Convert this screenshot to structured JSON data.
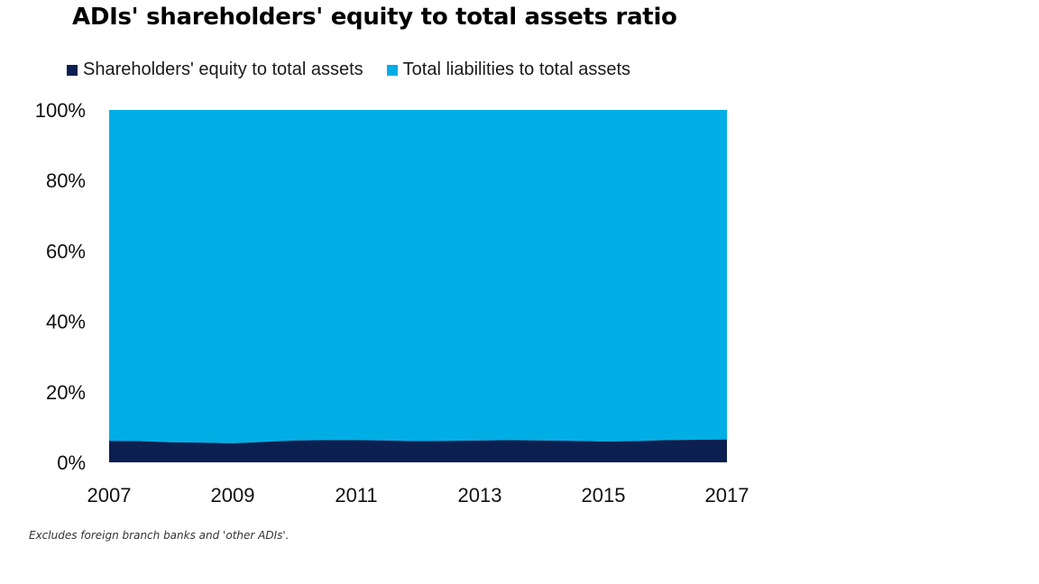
{
  "chart_data": {
    "type": "area",
    "stacked": true,
    "title": "ADIs' shareholders' equity to total assets ratio",
    "xlabel": "",
    "ylabel": "",
    "x": [
      2007,
      2007.5,
      2008,
      2008.5,
      2009,
      2009.5,
      2010,
      2010.5,
      2011,
      2011.5,
      2012,
      2012.5,
      2013,
      2013.5,
      2014,
      2014.5,
      2015,
      2015.5,
      2016,
      2016.5,
      2017
    ],
    "xlim": [
      2007,
      2017
    ],
    "x_ticks": [
      "2007",
      "2009",
      "2011",
      "2013",
      "2015",
      "2017"
    ],
    "y_ticks": [
      "0%",
      "20%",
      "40%",
      "60%",
      "80%",
      "100%"
    ],
    "ylim": [
      0,
      100
    ],
    "grid": false,
    "legend_position": "top-left",
    "series": [
      {
        "name": "Shareholders' equity to total assets",
        "color": "#0b2050",
        "values": [
          6.1,
          6.0,
          5.7,
          5.6,
          5.4,
          5.8,
          6.2,
          6.3,
          6.3,
          6.2,
          6.0,
          6.1,
          6.2,
          6.3,
          6.2,
          6.1,
          5.9,
          6.0,
          6.3,
          6.4,
          6.5
        ]
      },
      {
        "name": "Total liabilities to total assets",
        "color": "#00aee6",
        "values": [
          93.9,
          94.0,
          94.3,
          94.4,
          94.6,
          94.2,
          93.8,
          93.7,
          93.7,
          93.8,
          94.0,
          93.9,
          93.8,
          93.7,
          93.8,
          93.9,
          94.1,
          94.0,
          93.7,
          93.6,
          93.5
        ]
      }
    ],
    "footnote": "Excludes foreign branch banks and 'other ADIs'."
  }
}
